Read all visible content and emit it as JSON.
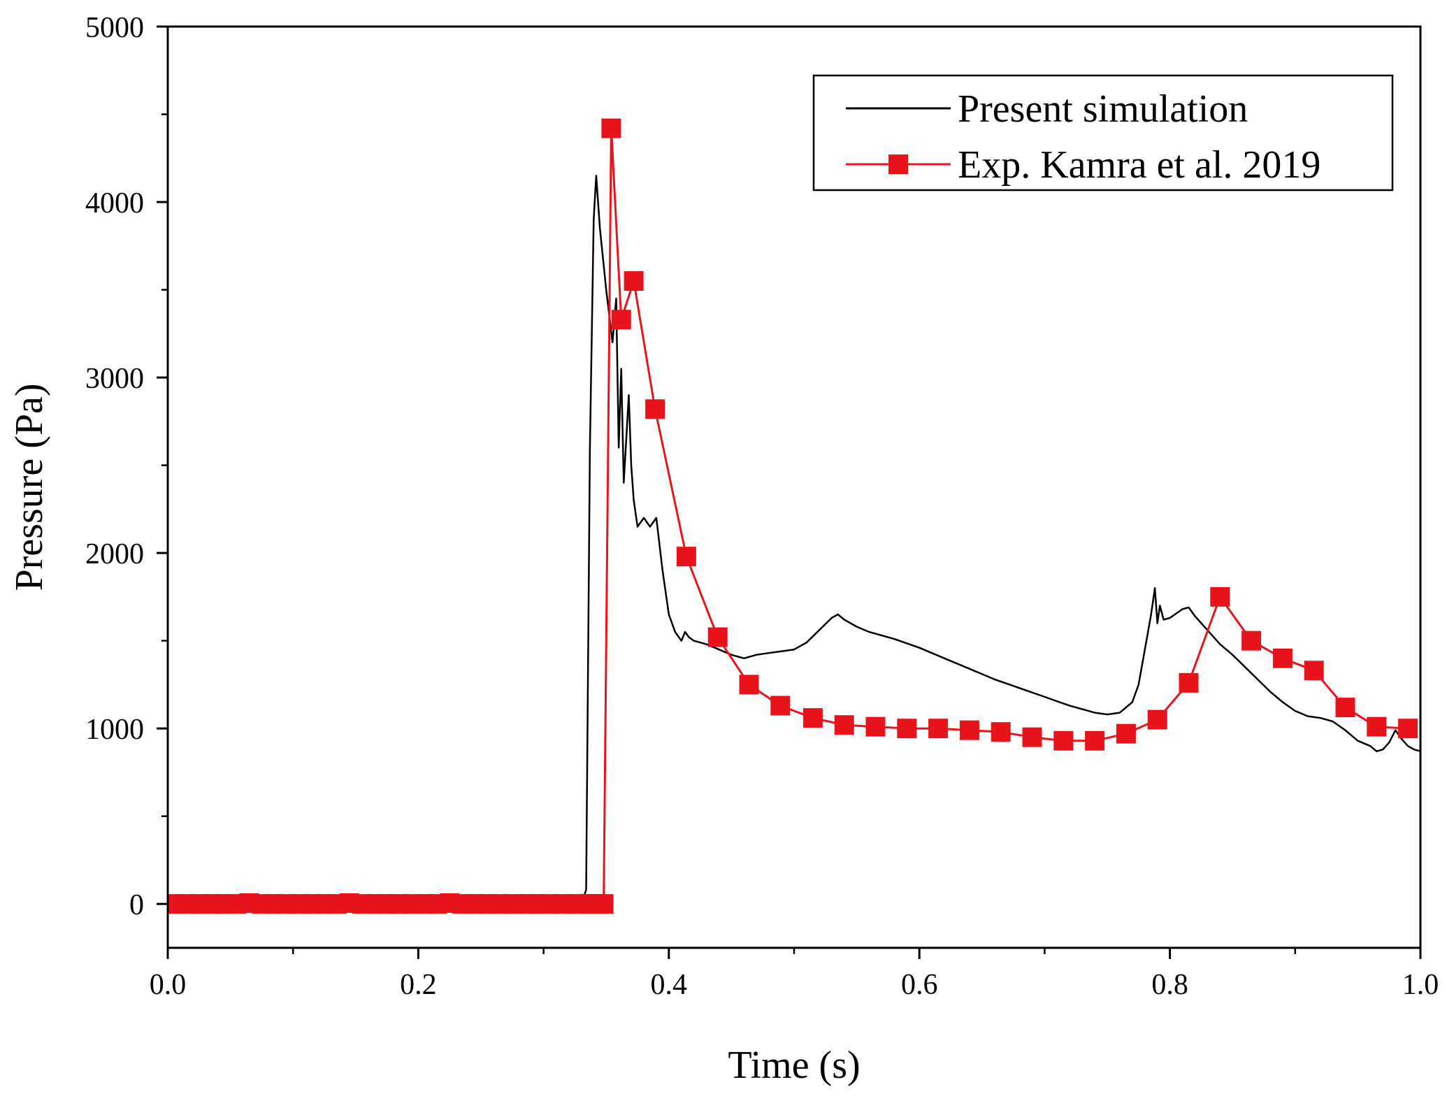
{
  "chart_data": {
    "type": "line",
    "title": "",
    "xlabel": "Time (s)",
    "ylabel": "Pressure (Pa)",
    "xlim": [
      0.0,
      1.0
    ],
    "ylim": [
      -250,
      5000
    ],
    "x_ticks": [
      0.0,
      0.2,
      0.4,
      0.6,
      0.8,
      1.0
    ],
    "x_tick_labels": [
      "0.0",
      "0.2",
      "0.4",
      "0.6",
      "0.8",
      "1.0"
    ],
    "x_minor_ticks": [
      0.1,
      0.3,
      0.5,
      0.7,
      0.9
    ],
    "y_ticks": [
      0,
      1000,
      2000,
      3000,
      4000,
      5000
    ],
    "y_tick_labels": [
      "0",
      "1000",
      "2000",
      "3000",
      "4000",
      "5000"
    ],
    "y_minor_ticks": [
      500,
      1500,
      2500,
      3500,
      4500
    ],
    "grid": false,
    "legend_position": "top-right",
    "series": [
      {
        "name": "Present simulation",
        "color": "#000000",
        "marker": "none",
        "x": [
          0.0,
          0.05,
          0.1,
          0.15,
          0.2,
          0.25,
          0.3,
          0.33,
          0.334,
          0.337,
          0.34,
          0.342,
          0.345,
          0.35,
          0.355,
          0.358,
          0.36,
          0.362,
          0.364,
          0.366,
          0.368,
          0.37,
          0.372,
          0.375,
          0.38,
          0.385,
          0.39,
          0.395,
          0.4,
          0.405,
          0.41,
          0.413,
          0.416,
          0.42,
          0.43,
          0.44,
          0.45,
          0.46,
          0.47,
          0.48,
          0.49,
          0.5,
          0.51,
          0.52,
          0.53,
          0.535,
          0.54,
          0.55,
          0.56,
          0.58,
          0.6,
          0.62,
          0.64,
          0.66,
          0.68,
          0.7,
          0.72,
          0.74,
          0.75,
          0.76,
          0.77,
          0.775,
          0.78,
          0.785,
          0.788,
          0.79,
          0.792,
          0.795,
          0.8,
          0.81,
          0.815,
          0.82,
          0.83,
          0.84,
          0.85,
          0.86,
          0.87,
          0.88,
          0.89,
          0.9,
          0.91,
          0.92,
          0.93,
          0.94,
          0.95,
          0.96,
          0.965,
          0.97,
          0.975,
          0.98,
          0.985,
          0.99,
          0.995,
          1.0
        ],
        "y": [
          0,
          0,
          0,
          0,
          0,
          0,
          0,
          0,
          80,
          2600,
          3900,
          4150,
          3850,
          3500,
          3200,
          3450,
          2600,
          3050,
          2400,
          2650,
          2900,
          2500,
          2300,
          2150,
          2200,
          2150,
          2200,
          1900,
          1650,
          1550,
          1500,
          1550,
          1520,
          1500,
          1480,
          1450,
          1420,
          1400,
          1420,
          1430,
          1440,
          1450,
          1490,
          1560,
          1630,
          1650,
          1620,
          1580,
          1550,
          1510,
          1460,
          1400,
          1340,
          1280,
          1230,
          1180,
          1130,
          1090,
          1080,
          1090,
          1150,
          1250,
          1450,
          1650,
          1800,
          1600,
          1700,
          1620,
          1630,
          1680,
          1690,
          1640,
          1560,
          1480,
          1420,
          1350,
          1280,
          1210,
          1150,
          1100,
          1070,
          1060,
          1040,
          990,
          930,
          900,
          870,
          880,
          920,
          990,
          940,
          900,
          880,
          870
        ]
      },
      {
        "name": "Exp. Kamra et al. 2019",
        "color": "#e8141c",
        "marker": "square",
        "x": [
          0.005,
          0.015,
          0.025,
          0.035,
          0.045,
          0.055,
          0.065,
          0.075,
          0.085,
          0.095,
          0.105,
          0.115,
          0.125,
          0.135,
          0.145,
          0.155,
          0.165,
          0.175,
          0.185,
          0.195,
          0.205,
          0.215,
          0.225,
          0.235,
          0.245,
          0.255,
          0.265,
          0.275,
          0.285,
          0.295,
          0.305,
          0.315,
          0.325,
          0.335,
          0.342,
          0.348,
          0.354,
          0.362,
          0.372,
          0.389,
          0.414,
          0.439,
          0.464,
          0.489,
          0.515,
          0.54,
          0.565,
          0.59,
          0.615,
          0.64,
          0.665,
          0.69,
          0.715,
          0.74,
          0.765,
          0.79,
          0.815,
          0.84,
          0.865,
          0.89,
          0.915,
          0.94,
          0.965,
          0.99
        ],
        "y": [
          0,
          0,
          0,
          0,
          0,
          0,
          5,
          0,
          0,
          0,
          0,
          0,
          0,
          0,
          5,
          0,
          0,
          0,
          0,
          0,
          0,
          0,
          5,
          0,
          0,
          0,
          0,
          0,
          0,
          0,
          0,
          0,
          0,
          0,
          0,
          0,
          4420,
          3330,
          3550,
          2820,
          1980,
          1520,
          1250,
          1130,
          1060,
          1020,
          1010,
          1000,
          1000,
          990,
          980,
          950,
          930,
          930,
          970,
          1050,
          1260,
          1750,
          1500,
          1400,
          1330,
          1120,
          1010,
          1000
        ]
      }
    ]
  }
}
